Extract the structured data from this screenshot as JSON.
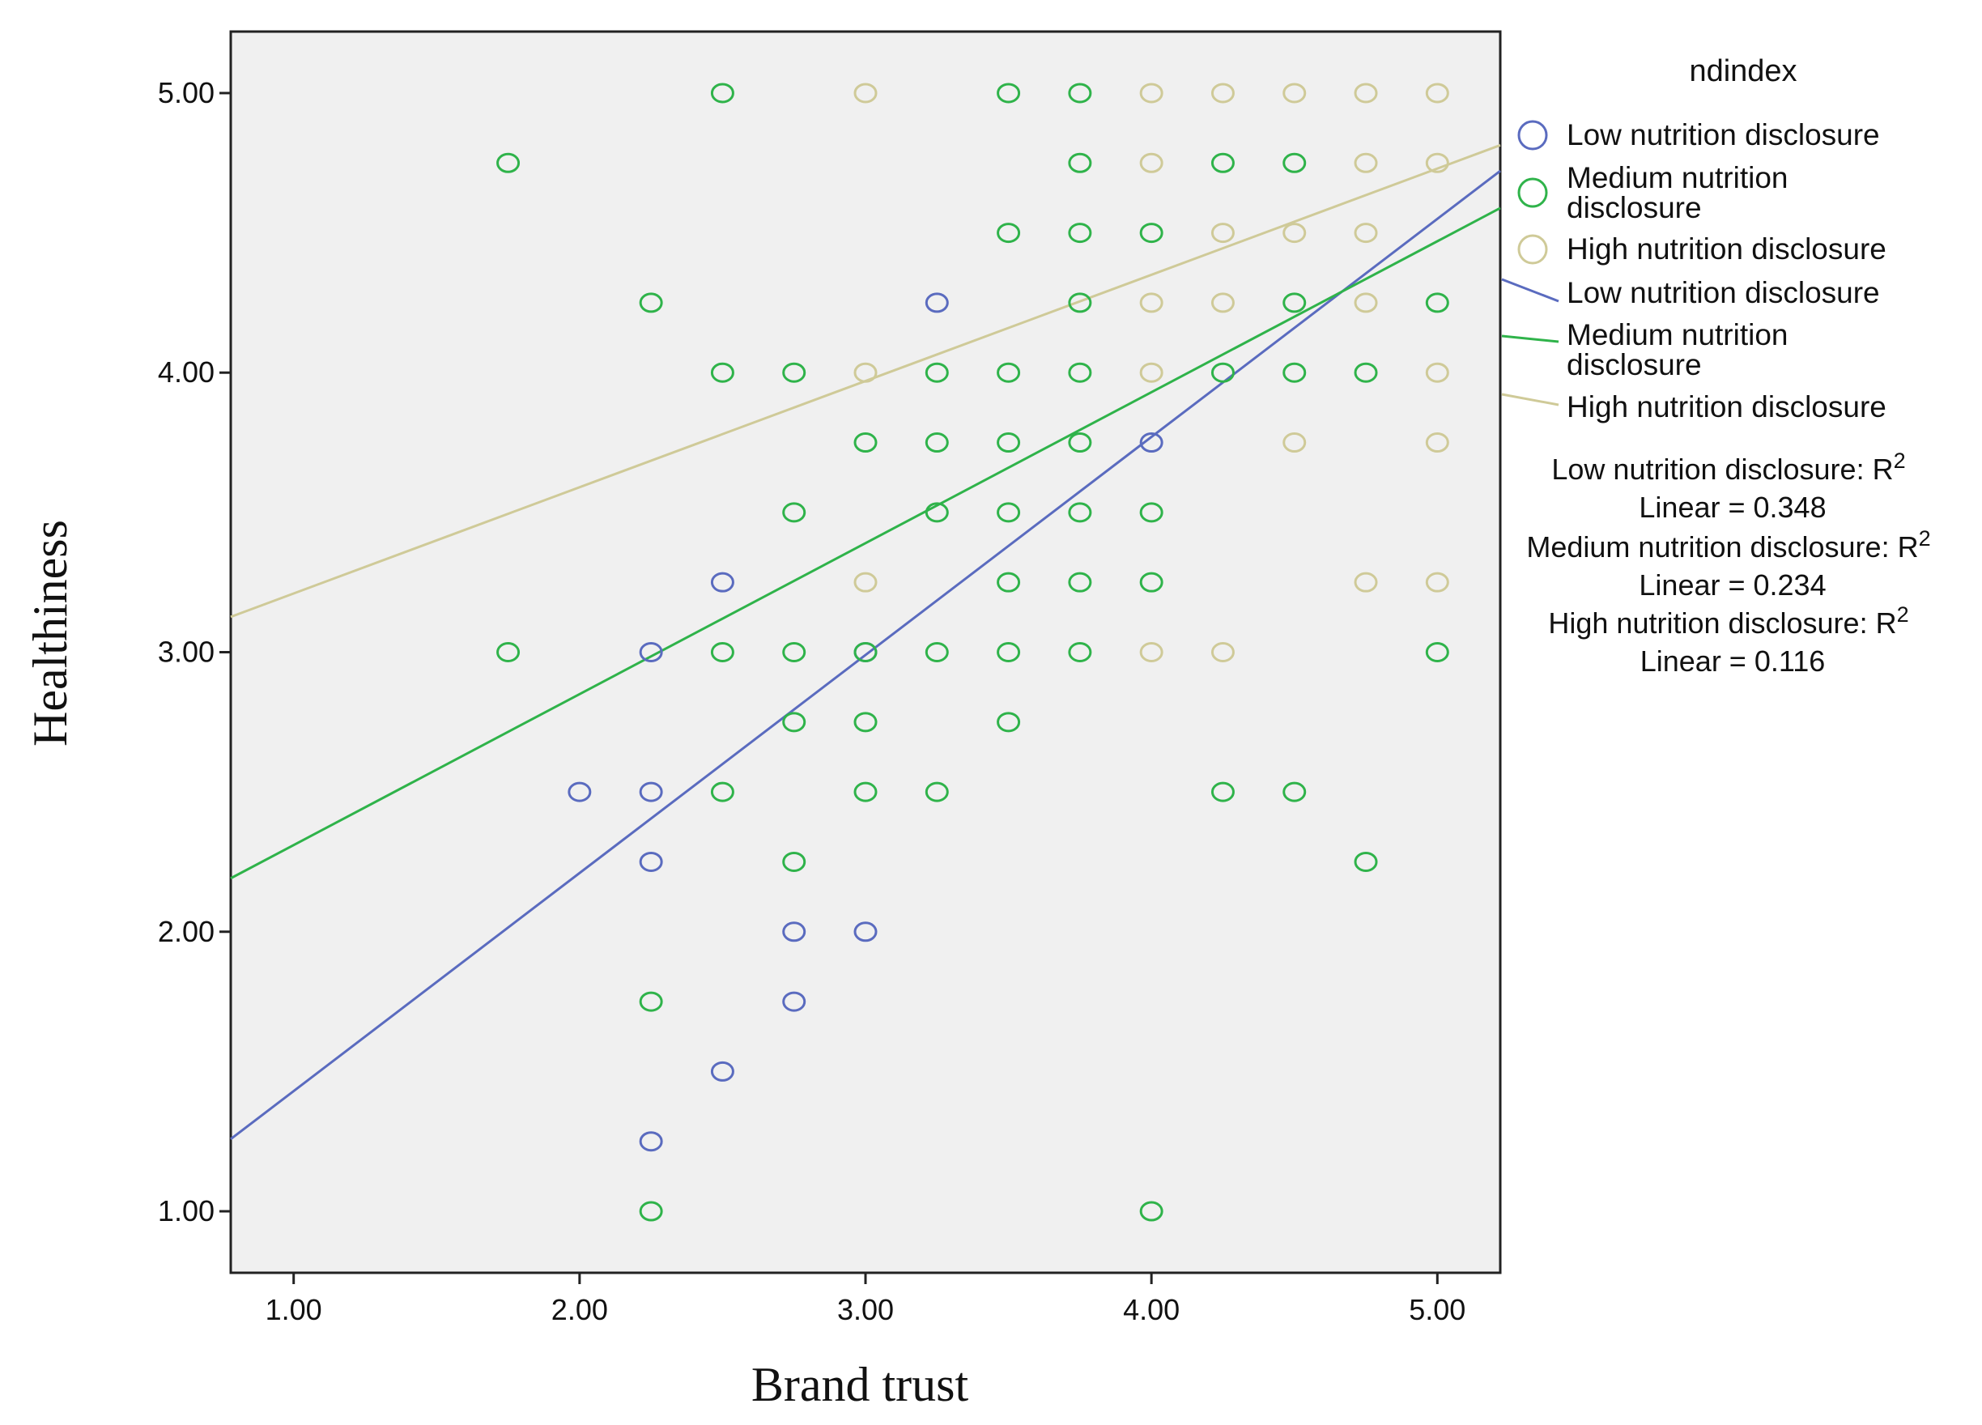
{
  "chart_data": {
    "type": "scatter",
    "title": "",
    "xlabel": "Brand trust",
    "ylabel": "Healthiness",
    "xlim": [
      0.78,
      5.22
    ],
    "ylim": [
      0.78,
      5.22
    ],
    "xticks": [
      "1.00",
      "2.00",
      "3.00",
      "4.00",
      "5.00"
    ],
    "yticks": [
      "1.00",
      "2.00",
      "3.00",
      "4.00",
      "5.00"
    ],
    "legend": {
      "title": "ndindex",
      "position": "right",
      "marker_entries": [
        {
          "label": "Low nutrition disclosure",
          "lines": [
            "Low nutrition disclosure"
          ],
          "color": "#5a6bbf"
        },
        {
          "label": "Medium nutrition disclosure",
          "lines": [
            "Medium nutrition",
            "disclosure"
          ],
          "color": "#2fb34a"
        },
        {
          "label": "High nutrition disclosure",
          "lines": [
            "High nutrition disclosure"
          ],
          "color": "#cfca98"
        }
      ],
      "line_entries": [
        {
          "label": "Low nutrition disclosure",
          "lines": [
            "Low nutrition disclosure"
          ],
          "color": "#5a6bbf"
        },
        {
          "label": "Medium nutrition disclosure",
          "lines": [
            "Medium nutrition",
            "disclosure"
          ],
          "color": "#2fb34a"
        },
        {
          "label": "High nutrition disclosure",
          "lines": [
            "High nutrition disclosure"
          ],
          "color": "#cfca98"
        }
      ],
      "r2_notes": [
        {
          "series": "Low nutrition disclosure",
          "line1": "Low nutrition disclosure: R",
          "sup": "2",
          "line2": "Linear = 0.348"
        },
        {
          "series": "Medium nutrition disclosure",
          "line1": "Medium nutrition disclosure: R",
          "sup": "2",
          "line2": "Linear = 0.234"
        },
        {
          "series": "High nutrition disclosure",
          "line1": "High nutrition disclosure: R",
          "sup": "2",
          "line2": "Linear = 0.116"
        }
      ]
    },
    "series": [
      {
        "name": "Low nutrition disclosure",
        "color": "#5a6bbf",
        "points": [
          [
            2.0,
            2.5
          ],
          [
            2.25,
            2.5
          ],
          [
            2.25,
            2.25
          ],
          [
            2.25,
            3.0
          ],
          [
            2.25,
            1.25
          ],
          [
            2.5,
            3.25
          ],
          [
            2.5,
            1.5
          ],
          [
            2.75,
            2.0
          ],
          [
            2.75,
            1.75
          ],
          [
            3.0,
            2.0
          ],
          [
            3.0,
            3.0
          ],
          [
            3.25,
            4.25
          ],
          [
            4.0,
            3.75
          ]
        ],
        "fit": {
          "slope": 0.78,
          "intercept": 0.65,
          "r2": 0.348
        }
      },
      {
        "name": "Medium nutrition disclosure",
        "color": "#2fb34a",
        "points": [
          [
            1.75,
            4.75
          ],
          [
            1.75,
            3.0
          ],
          [
            2.25,
            4.25
          ],
          [
            2.25,
            1.75
          ],
          [
            2.25,
            1.0
          ],
          [
            2.5,
            5.0
          ],
          [
            2.5,
            4.0
          ],
          [
            2.5,
            3.0
          ],
          [
            2.5,
            2.5
          ],
          [
            2.75,
            4.0
          ],
          [
            2.75,
            3.5
          ],
          [
            2.75,
            3.0
          ],
          [
            2.75,
            2.75
          ],
          [
            2.75,
            2.25
          ],
          [
            3.0,
            3.75
          ],
          [
            3.0,
            3.0
          ],
          [
            3.0,
            2.75
          ],
          [
            3.0,
            2.5
          ],
          [
            3.25,
            4.0
          ],
          [
            3.25,
            3.75
          ],
          [
            3.25,
            3.5
          ],
          [
            3.25,
            3.0
          ],
          [
            3.25,
            2.5
          ],
          [
            3.5,
            5.0
          ],
          [
            3.5,
            4.5
          ],
          [
            3.5,
            4.0
          ],
          [
            3.5,
            3.75
          ],
          [
            3.5,
            3.5
          ],
          [
            3.5,
            3.25
          ],
          [
            3.5,
            3.0
          ],
          [
            3.5,
            2.75
          ],
          [
            3.75,
            5.0
          ],
          [
            3.75,
            4.75
          ],
          [
            3.75,
            4.5
          ],
          [
            3.75,
            4.25
          ],
          [
            3.75,
            4.0
          ],
          [
            3.75,
            3.75
          ],
          [
            3.75,
            3.5
          ],
          [
            3.75,
            3.25
          ],
          [
            3.75,
            3.0
          ],
          [
            4.0,
            4.5
          ],
          [
            4.0,
            3.5
          ],
          [
            4.0,
            3.25
          ],
          [
            4.0,
            1.0
          ],
          [
            4.25,
            4.75
          ],
          [
            4.25,
            4.0
          ],
          [
            4.25,
            2.5
          ],
          [
            4.5,
            4.75
          ],
          [
            4.5,
            4.25
          ],
          [
            4.5,
            4.0
          ],
          [
            4.5,
            2.5
          ],
          [
            4.75,
            4.0
          ],
          [
            4.75,
            2.25
          ],
          [
            5.0,
            4.25
          ],
          [
            5.0,
            3.0
          ]
        ],
        "fit": {
          "slope": 0.54,
          "intercept": 1.77,
          "r2": 0.234
        }
      },
      {
        "name": "High nutrition disclosure",
        "color": "#cfca98",
        "points": [
          [
            3.0,
            5.0
          ],
          [
            3.0,
            4.0
          ],
          [
            3.0,
            3.25
          ],
          [
            4.0,
            5.0
          ],
          [
            4.0,
            4.75
          ],
          [
            4.0,
            4.25
          ],
          [
            4.0,
            4.0
          ],
          [
            4.0,
            3.0
          ],
          [
            4.25,
            5.0
          ],
          [
            4.25,
            4.5
          ],
          [
            4.25,
            4.25
          ],
          [
            4.25,
            3.0
          ],
          [
            4.5,
            5.0
          ],
          [
            4.5,
            4.5
          ],
          [
            4.5,
            3.75
          ],
          [
            4.75,
            5.0
          ],
          [
            4.75,
            4.75
          ],
          [
            4.75,
            4.5
          ],
          [
            4.75,
            4.25
          ],
          [
            4.75,
            3.25
          ],
          [
            5.0,
            5.0
          ],
          [
            5.0,
            4.75
          ],
          [
            5.0,
            4.0
          ],
          [
            5.0,
            3.75
          ],
          [
            5.0,
            3.25
          ]
        ],
        "fit": {
          "slope": 0.38,
          "intercept": 2.83,
          "r2": 0.116
        }
      }
    ]
  }
}
